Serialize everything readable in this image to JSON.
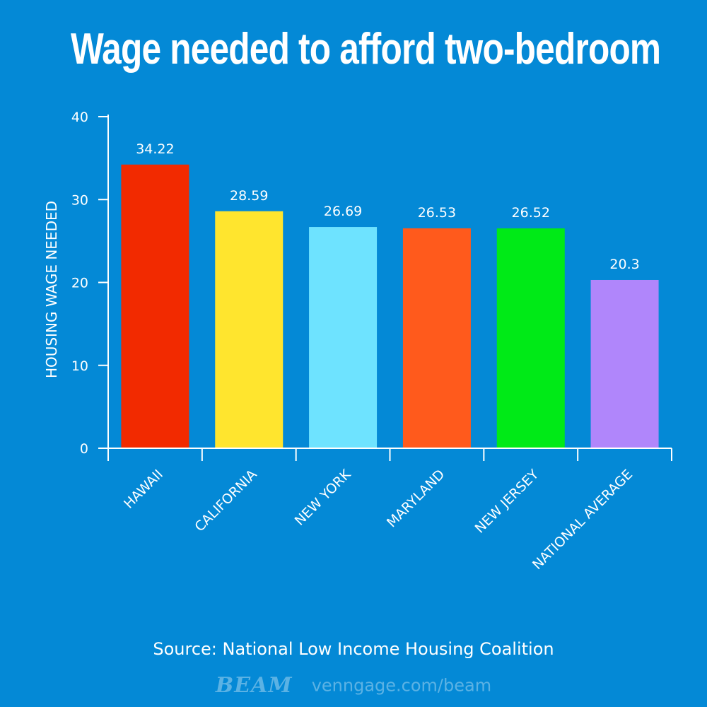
{
  "chart_data": {
    "type": "bar",
    "title": "Wage needed to afford two-bedroom",
    "ylabel": "HOUSING WAGE NEEDED",
    "xlabel": "",
    "ylim": [
      0,
      40
    ],
    "yticks": [
      0,
      10,
      20,
      30,
      40
    ],
    "categories": [
      "HAWAII",
      "CALIFORNIA",
      "NEW YORK",
      "MARYLAND",
      "NEW JERSEY",
      "NATIONAL AVERAGE"
    ],
    "values": [
      34.22,
      28.59,
      26.69,
      26.53,
      26.52,
      20.3
    ],
    "value_labels": [
      "34.22",
      "28.59",
      "26.69",
      "26.53",
      "26.52",
      "20.3"
    ],
    "colors": [
      "#f22a00",
      "#ffe52e",
      "#6ee3ff",
      "#ff5a1c",
      "#00ea17",
      "#b086fb"
    ],
    "grid": false,
    "legend": "none"
  },
  "source": "Source: National Low Income Housing Coalition",
  "footer": {
    "logo_text": "BEAM",
    "url": "venngage.com/beam"
  }
}
